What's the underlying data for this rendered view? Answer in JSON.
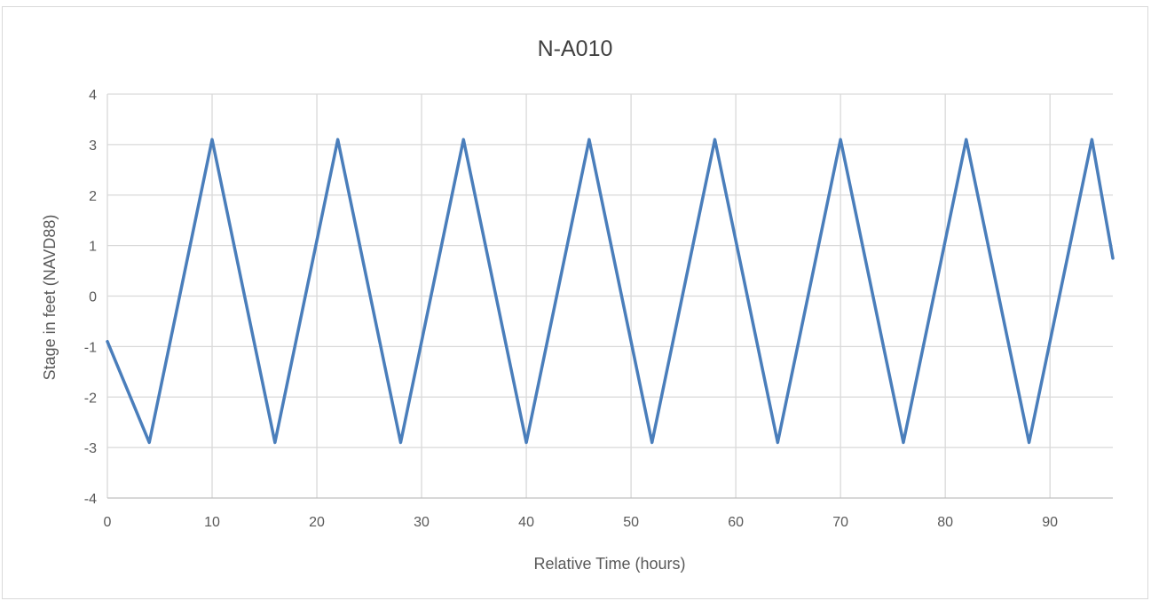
{
  "chart_data": {
    "type": "line",
    "title": "N-A010",
    "xlabel": "Relative Time (hours)",
    "ylabel": "Stage in feet (NAVD88)",
    "xlim": [
      0,
      96
    ],
    "ylim": [
      -4,
      4
    ],
    "x_ticks": [
      0,
      10,
      20,
      30,
      40,
      50,
      60,
      70,
      80,
      90
    ],
    "y_ticks": [
      4,
      3,
      2,
      1,
      0,
      -1,
      -2,
      -3,
      -4
    ],
    "grid": true,
    "legend": "none",
    "series": [
      {
        "color": "#4a7ebb",
        "x": [
          0,
          4,
          10,
          16,
          22,
          28,
          34,
          40,
          46,
          52,
          58,
          64,
          70,
          76,
          82,
          88,
          94,
          96
        ],
        "y": [
          -0.9,
          -2.9,
          3.1,
          -2.9,
          3.1,
          -2.9,
          3.1,
          -2.9,
          3.1,
          -2.9,
          3.1,
          -2.9,
          3.1,
          -2.9,
          3.1,
          -2.9,
          3.1,
          0.75
        ]
      }
    ]
  }
}
